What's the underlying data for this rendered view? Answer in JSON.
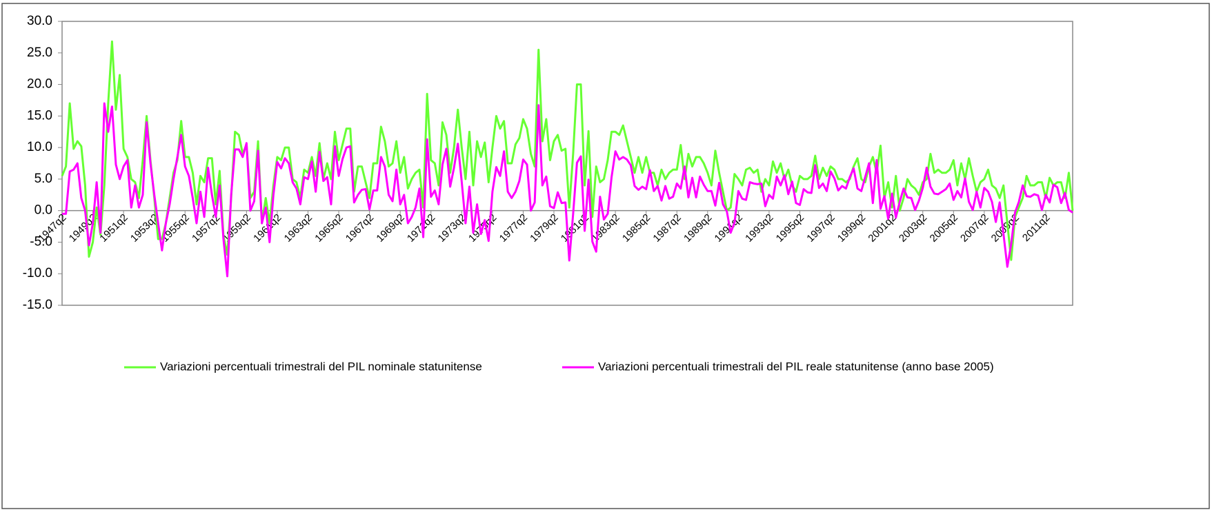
{
  "chart_data": {
    "type": "line",
    "categories": [
      "1947q2",
      null,
      null,
      null,
      null,
      null,
      null,
      null,
      "1949q2",
      null,
      null,
      null,
      null,
      null,
      null,
      null,
      "1951q2",
      null,
      null,
      null,
      null,
      null,
      null,
      null,
      "1953q2",
      null,
      null,
      null,
      null,
      null,
      null,
      null,
      "1955q2",
      null,
      null,
      null,
      null,
      null,
      null,
      null,
      "1957q2",
      null,
      null,
      null,
      null,
      null,
      null,
      null,
      "1959q2",
      null,
      null,
      null,
      null,
      null,
      null,
      null,
      "1961q2",
      null,
      null,
      null,
      null,
      null,
      null,
      null,
      "1963q2",
      null,
      null,
      null,
      null,
      null,
      null,
      null,
      "1965q2",
      null,
      null,
      null,
      null,
      null,
      null,
      null,
      "1967q2",
      null,
      null,
      null,
      null,
      null,
      null,
      null,
      "1969q2",
      null,
      null,
      null,
      null,
      null,
      null,
      null,
      "1971q2",
      null,
      null,
      null,
      null,
      null,
      null,
      null,
      "1973q2",
      null,
      null,
      null,
      null,
      null,
      null,
      null,
      "1975q2",
      null,
      null,
      null,
      null,
      null,
      null,
      null,
      "1977q2",
      null,
      null,
      null,
      null,
      null,
      null,
      null,
      "1979q2",
      null,
      null,
      null,
      null,
      null,
      null,
      null,
      "1981q2",
      null,
      null,
      null,
      null,
      null,
      null,
      null,
      "1983q2",
      null,
      null,
      null,
      null,
      null,
      null,
      null,
      "1985q2",
      null,
      null,
      null,
      null,
      null,
      null,
      null,
      "1987q2",
      null,
      null,
      null,
      null,
      null,
      null,
      null,
      "1989q2",
      null,
      null,
      null,
      null,
      null,
      null,
      null,
      "1991q2",
      null,
      null,
      null,
      null,
      null,
      null,
      null,
      "1993q2",
      null,
      null,
      null,
      null,
      null,
      null,
      null,
      "1995q2",
      null,
      null,
      null,
      null,
      null,
      null,
      null,
      "1997q2",
      null,
      null,
      null,
      null,
      null,
      null,
      null,
      "1999q2",
      null,
      null,
      null,
      null,
      null,
      null,
      null,
      "2001q2",
      null,
      null,
      null,
      null,
      null,
      null,
      null,
      "2003q2",
      null,
      null,
      null,
      null,
      null,
      null,
      null,
      "2005q2",
      null,
      null,
      null,
      null,
      null,
      null,
      null,
      "2007q2",
      null,
      null,
      null,
      null,
      null,
      null,
      null,
      "2009q2",
      null,
      null,
      null,
      null,
      null,
      null,
      null,
      "2011q2",
      null,
      null,
      null,
      null,
      null,
      null,
      null
    ],
    "series": [
      {
        "name": "Variazioni percentuali trimestrali del PIL nominale statunitense",
        "color": "#66ff33",
        "values": [
          5.5,
          7,
          17,
          9.8,
          11,
          10.2,
          4,
          -7.3,
          -5,
          0.5,
          -3.8,
          4,
          17,
          26.8,
          16,
          21.5,
          9.8,
          8.5,
          5,
          4.5,
          2,
          8,
          15,
          8,
          2,
          -4.5,
          -4.5,
          -2,
          2,
          6,
          8,
          14.2,
          8.5,
          8.5,
          6,
          1,
          5.5,
          4.5,
          8.3,
          8.3,
          1,
          6.3,
          -4,
          -7,
          2,
          12.5,
          12,
          9,
          10.5,
          2,
          3,
          11,
          -2,
          2,
          -2,
          4,
          8.5,
          8,
          10,
          10,
          5,
          4.5,
          2,
          6.5,
          6,
          8.5,
          5.5,
          10.7,
          5,
          7.5,
          5,
          12.5,
          8,
          10.5,
          13,
          13,
          3,
          7,
          7,
          4.5,
          2,
          7.5,
          7.5,
          13.3,
          11,
          7,
          7.5,
          11,
          6,
          8.5,
          3.5,
          5,
          6,
          6.5,
          0.5,
          18.5,
          8,
          7.5,
          4,
          14,
          12,
          6,
          10,
          16,
          10,
          5,
          12.5,
          4,
          11,
          8.5,
          10.8,
          4.5,
          10,
          15,
          13,
          14.2,
          7.5,
          7.5,
          10.5,
          11.5,
          14.5,
          13,
          9,
          7,
          25.5,
          11,
          14.5,
          8,
          11,
          12,
          9.5,
          9.8,
          0.5,
          9,
          20,
          20,
          4,
          12.6,
          -1,
          7,
          4.5,
          5,
          8,
          12.5,
          12.5,
          12,
          13.5,
          11,
          8.5,
          6,
          8.5,
          6,
          8.5,
          6,
          6,
          4,
          6.5,
          5,
          6,
          6.5,
          6.5,
          10.4,
          5,
          9,
          7,
          8.5,
          8.5,
          7.5,
          6,
          4,
          9.5,
          6,
          3,
          0,
          0.5,
          5.8,
          5,
          4,
          6.5,
          6.8,
          6,
          6.5,
          3,
          5,
          4,
          7.8,
          6,
          7.5,
          5,
          6.5,
          4,
          3,
          5.5,
          5,
          5,
          5.5,
          8.7,
          5,
          6.8,
          5.5,
          7,
          6.5,
          5,
          5,
          4.5,
          5,
          7,
          8.3,
          5,
          4.5,
          7,
          8.5,
          6,
          10.3,
          2,
          4.5,
          0.5,
          5.5,
          0,
          2,
          5,
          4,
          3.5,
          2.5,
          4.5,
          5,
          9,
          6,
          6.5,
          6,
          6,
          6.5,
          8,
          4,
          7.5,
          5,
          8.3,
          5.5,
          3,
          4.5,
          5,
          6.5,
          4,
          3.5,
          2,
          4,
          -2,
          -7.8,
          -1,
          0.5,
          2,
          5.5,
          4,
          4,
          4.5,
          4.5,
          2,
          5.2,
          4,
          4.5,
          4.5,
          2,
          6,
          0
        ]
      },
      {
        "name": "Variazioni percentuali trimestrali del PIL reale statunitense (anno base 2005)",
        "color": "#ff00ff",
        "values": [
          -0.5,
          -0.5,
          6.2,
          6.5,
          7.5,
          2,
          0,
          -5.5,
          -2,
          4.5,
          -3.5,
          17,
          12.5,
          16.5,
          7.3,
          5,
          7,
          8,
          0.5,
          4,
          0.5,
          2.5,
          14,
          7.5,
          2.5,
          -2,
          -6.3,
          -2,
          1,
          5,
          8.5,
          12,
          7,
          5.5,
          2,
          -2,
          3,
          -1,
          6.8,
          2.5,
          -1,
          4,
          -4.5,
          -10.4,
          2.5,
          9.7,
          9.7,
          8.5,
          10.7,
          0,
          1.5,
          9.5,
          -2,
          0.5,
          -5,
          2.5,
          7.7,
          6.7,
          8.3,
          7.5,
          4.5,
          3.5,
          1,
          5.3,
          5,
          7.8,
          3,
          9.3,
          4.7,
          5.3,
          1,
          10.2,
          5.5,
          8.2,
          10,
          10.2,
          1.3,
          2.5,
          3.3,
          3.4,
          0.2,
          3.2,
          3.2,
          8.5,
          7,
          2.5,
          1.5,
          6.5,
          1,
          2.5,
          -2,
          -1,
          0.5,
          3.5,
          -4.2,
          11.3,
          2.2,
          3.2,
          1,
          7.3,
          9.8,
          3.8,
          6.8,
          10.6,
          4.6,
          -2,
          3.8,
          -3.5,
          1,
          -3.7,
          -1.5,
          -4.8,
          3,
          6.9,
          5.5,
          9.4,
          3,
          2,
          3,
          4.7,
          8.1,
          7.3,
          0,
          1.3,
          16.7,
          4,
          5.4,
          0.7,
          0.4,
          2.9,
          1.2,
          1.3,
          -7.9,
          -0.5,
          7.6,
          8.6,
          -3.2,
          4.9,
          -4.9,
          -6.5,
          2.2,
          -1.4,
          -0.5,
          5.3,
          9.4,
          8.1,
          8.5,
          8.1,
          7.2,
          3.9,
          3.3,
          3.8,
          3.4,
          6.4,
          3.1,
          3.9,
          1.6,
          3.9,
          1.9,
          2.2,
          4.3,
          3.5,
          7,
          2.1,
          5.2,
          2.1,
          5.4,
          4.1,
          3.1,
          3.1,
          0.8,
          4.4,
          1,
          -0.1,
          -3.5,
          -1.9,
          3.1,
          1.9,
          1.7,
          4.5,
          4.3,
          4.2,
          4.3,
          0.7,
          2.5,
          1.9,
          5.4,
          4,
          5.6,
          2.6,
          4.6,
          1.2,
          0.9,
          3.4,
          2.9,
          2.8,
          7.2,
          3.6,
          4.3,
          3.1,
          6.2,
          5.1,
          3.2,
          3.9,
          3.5,
          5.3,
          6.7,
          3.5,
          3.1,
          5.3,
          7.5,
          1.2,
          8,
          0.3,
          2.3,
          -1.3,
          2.7,
          -1.1,
          1.4,
          3.5,
          2.1,
          2,
          0.1,
          1.6,
          3.6,
          6.8,
          3.8,
          2.7,
          2.6,
          3,
          3.4,
          4.3,
          1.7,
          3.1,
          2.1,
          5.1,
          1.4,
          0.1,
          3,
          0.5,
          3.6,
          3,
          1.4,
          -1.8,
          1.3,
          -3.7,
          -8.9,
          -5.3,
          -0.3,
          1.4,
          4,
          2.3,
          2.2,
          2.6,
          2.4,
          0.1,
          2.5,
          1.3,
          4.1,
          3.7,
          1.2,
          2.8,
          0.1,
          -0.3
        ]
      }
    ],
    "ylim": [
      -15,
      30
    ],
    "yticks": [
      {
        "value": -15,
        "label": "-15.0"
      },
      {
        "value": -10,
        "label": "-10.0"
      },
      {
        "value": -5,
        "label": "-5.0"
      },
      {
        "value": 0,
        "label": "0.0"
      },
      {
        "value": 5,
        "label": "5.0"
      },
      {
        "value": 10,
        "label": "10.0"
      },
      {
        "value": 15,
        "label": "15.0"
      },
      {
        "value": 20,
        "label": "20.0"
      },
      {
        "value": 25,
        "label": "25.0"
      },
      {
        "value": 30,
        "label": "30.0"
      }
    ],
    "grid": false,
    "legend": "bottom"
  }
}
